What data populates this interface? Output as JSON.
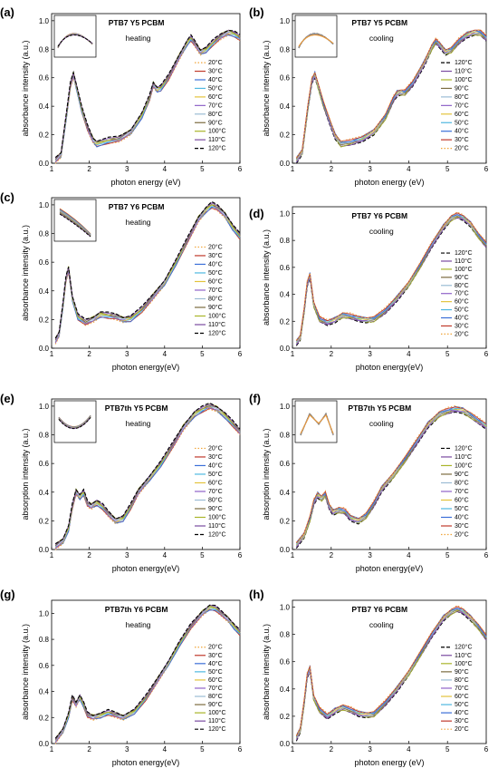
{
  "figure": {
    "colors": {
      "20": "#f0a53a",
      "30": "#c0392b",
      "40": "#3b6fd8",
      "50": "#4fb8e0",
      "60": "#e3c33c",
      "70": "#8f62c8",
      "80": "#9bbcd4",
      "90": "#7b6b3f",
      "100": "#a9b52a",
      "110": "#7a4aa0",
      "120": "#000000"
    },
    "icons": {
      "panel-inset": "zoom-inset-icon"
    }
  },
  "chart_data": [
    {
      "panel": "(a)",
      "type": "line",
      "title": "PTB7 Y5 PCBM",
      "subtitle": "heating",
      "xlabel": "photon energy (eV)",
      "ylabel": "absorbance intensity (a.u.)",
      "xlim": [
        1,
        6
      ],
      "ylim": [
        0,
        1.05
      ],
      "xticks": [
        "1",
        "2",
        "3",
        "4",
        "5",
        "6"
      ],
      "yticks": [
        "0.0",
        "0.2",
        "0.4",
        "0.6",
        "0.8",
        "1.0"
      ],
      "legend": [
        "20°C",
        "30°C",
        "40°C",
        "50°C",
        "60°C",
        "70°C",
        "80°C",
        "90°C",
        "100°C",
        "110°C",
        "120°C"
      ],
      "legend_keys": [
        "20",
        "30",
        "40",
        "50",
        "60",
        "70",
        "80",
        "90",
        "100",
        "110",
        "120"
      ],
      "legend_position": "right",
      "inset": "top-left",
      "x": [
        1.1,
        1.25,
        1.4,
        1.5,
        1.58,
        1.65,
        1.8,
        1.95,
        2.1,
        2.2,
        2.5,
        2.8,
        3.1,
        3.4,
        3.6,
        3.7,
        3.8,
        3.9,
        4.1,
        4.4,
        4.6,
        4.7,
        4.8,
        4.95,
        5.1,
        5.3,
        5.5,
        5.7,
        5.85,
        6.0
      ],
      "y": [
        0.02,
        0.06,
        0.35,
        0.55,
        0.62,
        0.55,
        0.38,
        0.25,
        0.16,
        0.14,
        0.16,
        0.17,
        0.22,
        0.34,
        0.46,
        0.55,
        0.52,
        0.53,
        0.6,
        0.75,
        0.85,
        0.88,
        0.84,
        0.78,
        0.8,
        0.85,
        0.89,
        0.92,
        0.91,
        0.88
      ]
    },
    {
      "panel": "(b)",
      "type": "line",
      "title": "PTB7 Y5 PCBM",
      "subtitle": "cooling",
      "xlabel": "photon  energy (eV)",
      "ylabel": "absorbance intensity (a.u.)",
      "xlim": [
        1,
        6
      ],
      "ylim": [
        0,
        1.05
      ],
      "xticks": [
        "1",
        "2",
        "3",
        "4",
        "5",
        "6"
      ],
      "yticks": [
        "0.0",
        "0.2",
        "0.4",
        "0.6",
        "0.8",
        "1.0"
      ],
      "legend": [
        "120°C",
        "110°C",
        "100°C",
        "90°C",
        "80°C",
        "70°C",
        "60°C",
        "50°C",
        "40°C",
        "30°C",
        "20°C"
      ],
      "legend_keys": [
        "120",
        "110",
        "100",
        "90",
        "80",
        "70",
        "60",
        "50",
        "40",
        "30",
        "20"
      ],
      "legend_position": "right",
      "inset": "top-left",
      "x": [
        1.1,
        1.25,
        1.4,
        1.5,
        1.58,
        1.65,
        1.8,
        1.95,
        2.1,
        2.25,
        2.5,
        2.8,
        3.1,
        3.4,
        3.6,
        3.7,
        3.8,
        3.9,
        4.1,
        4.4,
        4.6,
        4.7,
        4.8,
        4.95,
        5.1,
        5.3,
        5.5,
        5.7,
        5.85,
        6.0
      ],
      "y": [
        0.02,
        0.08,
        0.4,
        0.58,
        0.62,
        0.56,
        0.42,
        0.3,
        0.19,
        0.14,
        0.15,
        0.17,
        0.22,
        0.33,
        0.45,
        0.49,
        0.5,
        0.5,
        0.56,
        0.7,
        0.82,
        0.86,
        0.83,
        0.78,
        0.8,
        0.86,
        0.9,
        0.92,
        0.92,
        0.88
      ]
    },
    {
      "panel": "(c)",
      "type": "line",
      "title": "PTB7 Y6 PCBM",
      "subtitle": "heating",
      "xlabel": "photon energy(eV)",
      "ylabel": "absorbance intensity (a.u.)",
      "xlim": [
        1,
        6
      ],
      "ylim": [
        0,
        1.05
      ],
      "xticks": [
        "1",
        "2",
        "3",
        "4",
        "5",
        "6"
      ],
      "yticks": [
        "0.0",
        "0.2",
        "0.4",
        "0.6",
        "0.8",
        "1.0"
      ],
      "legend": [
        "20°C",
        "30°C",
        "40°C",
        "50°C",
        "60°C",
        "70°C",
        "80°C",
        "90°C",
        "100°C",
        "110°C",
        "120°C"
      ],
      "legend_keys": [
        "20",
        "30",
        "40",
        "50",
        "60",
        "70",
        "80",
        "90",
        "100",
        "110",
        "120"
      ],
      "legend_position": "right",
      "inset": "top-left",
      "x": [
        1.1,
        1.2,
        1.3,
        1.38,
        1.45,
        1.55,
        1.7,
        1.9,
        2.1,
        2.3,
        2.5,
        2.7,
        2.9,
        3.1,
        3.4,
        3.7,
        4.0,
        4.3,
        4.6,
        4.9,
        5.1,
        5.25,
        5.4,
        5.6,
        5.8,
        6.0
      ],
      "y": [
        0.05,
        0.1,
        0.3,
        0.48,
        0.55,
        0.35,
        0.22,
        0.18,
        0.2,
        0.24,
        0.23,
        0.22,
        0.2,
        0.21,
        0.27,
        0.36,
        0.46,
        0.6,
        0.75,
        0.9,
        0.97,
        1.0,
        0.98,
        0.93,
        0.85,
        0.78
      ]
    },
    {
      "panel": "(d)",
      "type": "line",
      "title": "PTB7 Y6 PCBM",
      "subtitle": "cooling",
      "xlabel": "photon energy(eV)",
      "ylabel": "absorbance intensity (a.u.)",
      "xlim": [
        1,
        6
      ],
      "ylim": [
        0,
        1.05
      ],
      "xticks": [
        "1",
        "2",
        "3",
        "4",
        "5",
        "6"
      ],
      "yticks": [
        "0.0",
        "0.2",
        "0.4",
        "0.6",
        "0.8",
        "1.0"
      ],
      "legend": [
        "120°C",
        "110°C",
        "100°C",
        "90°C",
        "80°C",
        "70°C",
        "60°C",
        "50°C",
        "40°C",
        "30°C",
        "20°C"
      ],
      "legend_keys": [
        "120",
        "110",
        "100",
        "90",
        "80",
        "70",
        "60",
        "50",
        "40",
        "30",
        "20"
      ],
      "legend_position": "right",
      "inset": "none",
      "x": [
        1.1,
        1.2,
        1.3,
        1.38,
        1.45,
        1.55,
        1.7,
        1.9,
        2.1,
        2.3,
        2.5,
        2.7,
        2.9,
        3.1,
        3.4,
        3.7,
        4.0,
        4.3,
        4.6,
        4.9,
        5.1,
        5.25,
        5.4,
        5.6,
        5.8,
        6.0
      ],
      "y": [
        0.04,
        0.08,
        0.28,
        0.48,
        0.54,
        0.33,
        0.22,
        0.19,
        0.21,
        0.25,
        0.24,
        0.22,
        0.21,
        0.22,
        0.28,
        0.37,
        0.48,
        0.62,
        0.77,
        0.9,
        0.97,
        0.99,
        0.97,
        0.92,
        0.84,
        0.77
      ]
    },
    {
      "panel": "(e)",
      "type": "line",
      "title": "PTB7th Y5 PCBM",
      "subtitle": "heating",
      "xlabel": "photon energy(eV)",
      "ylabel": "absorption intensity (a.u.)",
      "xlim": [
        1,
        6
      ],
      "ylim": [
        0,
        1.05
      ],
      "xticks": [
        "1",
        "2",
        "3",
        "4",
        "5",
        "6"
      ],
      "yticks": [
        "0.0",
        "0.2",
        "0.4",
        "0.6",
        "0.8",
        "1.0"
      ],
      "legend": [
        "20°C",
        "30°C",
        "40°C",
        "50°C",
        "60°C",
        "70°C",
        "80°C",
        "90°C",
        "100°C",
        "110°C",
        "120°C"
      ],
      "legend_keys": [
        "20",
        "30",
        "40",
        "50",
        "60",
        "70",
        "80",
        "90",
        "100",
        "110",
        "120"
      ],
      "legend_position": "right",
      "inset": "top-left",
      "x": [
        1.1,
        1.3,
        1.45,
        1.55,
        1.65,
        1.75,
        1.85,
        1.95,
        2.05,
        2.2,
        2.35,
        2.5,
        2.7,
        2.9,
        3.1,
        3.3,
        3.6,
        3.9,
        4.2,
        4.5,
        4.8,
        5.0,
        5.2,
        5.4,
        5.6,
        5.8,
        6.0
      ],
      "y": [
        0.02,
        0.06,
        0.15,
        0.3,
        0.4,
        0.37,
        0.4,
        0.32,
        0.3,
        0.33,
        0.3,
        0.25,
        0.2,
        0.22,
        0.3,
        0.4,
        0.5,
        0.6,
        0.72,
        0.85,
        0.95,
        0.98,
        1.0,
        0.98,
        0.94,
        0.88,
        0.82
      ]
    },
    {
      "panel": "(f)",
      "type": "line",
      "title": "PTB7th Y5 PCBM",
      "subtitle": "cooling",
      "xlabel": "photon energy(eV)",
      "ylabel": "absorption intensity (a.u.)",
      "xlim": [
        1,
        6
      ],
      "ylim": [
        0,
        1.05
      ],
      "xticks": [
        "1",
        "2",
        "3",
        "4",
        "5",
        "6"
      ],
      "yticks": [
        "0.0",
        "0.2",
        "0.4",
        "0.6",
        "0.8",
        "1.0"
      ],
      "legend": [
        "120°C",
        "110°C",
        "100°C",
        "90°C",
        "80°C",
        "70°C",
        "60°C",
        "50°C",
        "40°C",
        "30°C",
        "20°C"
      ],
      "legend_keys": [
        "120",
        "110",
        "100",
        "90",
        "80",
        "70",
        "60",
        "50",
        "40",
        "30",
        "20"
      ],
      "legend_position": "right",
      "inset": "top-left",
      "x": [
        1.1,
        1.3,
        1.45,
        1.55,
        1.65,
        1.75,
        1.85,
        1.95,
        2.05,
        2.2,
        2.35,
        2.5,
        2.7,
        2.9,
        3.1,
        3.3,
        3.6,
        3.9,
        4.2,
        4.5,
        4.8,
        5.0,
        5.2,
        5.4,
        5.6,
        5.8,
        6.0
      ],
      "y": [
        0.03,
        0.1,
        0.22,
        0.33,
        0.38,
        0.36,
        0.39,
        0.3,
        0.26,
        0.28,
        0.27,
        0.22,
        0.2,
        0.24,
        0.32,
        0.42,
        0.52,
        0.63,
        0.75,
        0.87,
        0.95,
        0.97,
        0.98,
        0.97,
        0.94,
        0.9,
        0.86
      ]
    },
    {
      "panel": "(g)",
      "type": "line",
      "title": "PTB7th Y6 PCBM",
      "subtitle": "heating",
      "xlabel": "photon energy(eV)",
      "ylabel": "absorbance intensity (a.u.)",
      "xlim": [
        1,
        6
      ],
      "ylim": [
        0,
        1.1
      ],
      "xticks": [
        "1",
        "2",
        "3",
        "4",
        "5",
        "6"
      ],
      "yticks": [
        "0.0",
        "0.2",
        "0.4",
        "0.6",
        "0.8",
        "1.0"
      ],
      "legend": [
        "20°C",
        "30°C",
        "40°C",
        "50°C",
        "60°C",
        "70°C",
        "80°C",
        "90°C",
        "100°C",
        "110°C",
        "120°C"
      ],
      "legend_keys": [
        "20",
        "30",
        "40",
        "50",
        "60",
        "70",
        "80",
        "90",
        "100",
        "110",
        "120"
      ],
      "legend_position": "right",
      "inset": "none",
      "x": [
        1.1,
        1.3,
        1.45,
        1.55,
        1.65,
        1.75,
        1.85,
        1.95,
        2.1,
        2.3,
        2.5,
        2.7,
        2.9,
        3.2,
        3.5,
        3.8,
        4.1,
        4.4,
        4.7,
        5.0,
        5.2,
        5.35,
        5.5,
        5.7,
        5.85,
        6.0
      ],
      "y": [
        0.02,
        0.1,
        0.22,
        0.35,
        0.3,
        0.36,
        0.3,
        0.22,
        0.2,
        0.22,
        0.24,
        0.22,
        0.2,
        0.25,
        0.35,
        0.48,
        0.62,
        0.77,
        0.9,
        1.0,
        1.05,
        1.04,
        1.0,
        0.95,
        0.9,
        0.85
      ]
    },
    {
      "panel": "(h)",
      "type": "line",
      "title": "PTB7 Y6 PCBM",
      "subtitle": "cooling",
      "xlabel": "photon energy (eV)",
      "ylabel": "absorbance intensity (a.u.)",
      "xlim": [
        1,
        6
      ],
      "ylim": [
        0,
        1.05
      ],
      "xticks": [
        "1",
        "2",
        "3",
        "4",
        "5",
        "6"
      ],
      "yticks": [
        "0.0",
        "0.2",
        "0.4",
        "0.6",
        "0.8",
        "1.0"
      ],
      "legend": [
        "120°C",
        "110°C",
        "100°C",
        "90°C",
        "80°C",
        "70°C",
        "60°C",
        "50°C",
        "40°C",
        "30°C",
        "20°C"
      ],
      "legend_keys": [
        "120",
        "110",
        "100",
        "90",
        "80",
        "70",
        "60",
        "50",
        "40",
        "30",
        "20"
      ],
      "legend_position": "right",
      "inset": "none",
      "x": [
        1.1,
        1.2,
        1.3,
        1.38,
        1.45,
        1.55,
        1.7,
        1.9,
        2.1,
        2.3,
        2.5,
        2.7,
        2.9,
        3.1,
        3.4,
        3.7,
        4.0,
        4.3,
        4.6,
        4.9,
        5.1,
        5.25,
        5.4,
        5.6,
        5.8,
        6.0
      ],
      "y": [
        0.04,
        0.1,
        0.3,
        0.5,
        0.55,
        0.34,
        0.25,
        0.2,
        0.24,
        0.27,
        0.25,
        0.22,
        0.21,
        0.22,
        0.3,
        0.4,
        0.52,
        0.66,
        0.8,
        0.92,
        0.97,
        0.99,
        0.97,
        0.92,
        0.86,
        0.78
      ]
    }
  ]
}
